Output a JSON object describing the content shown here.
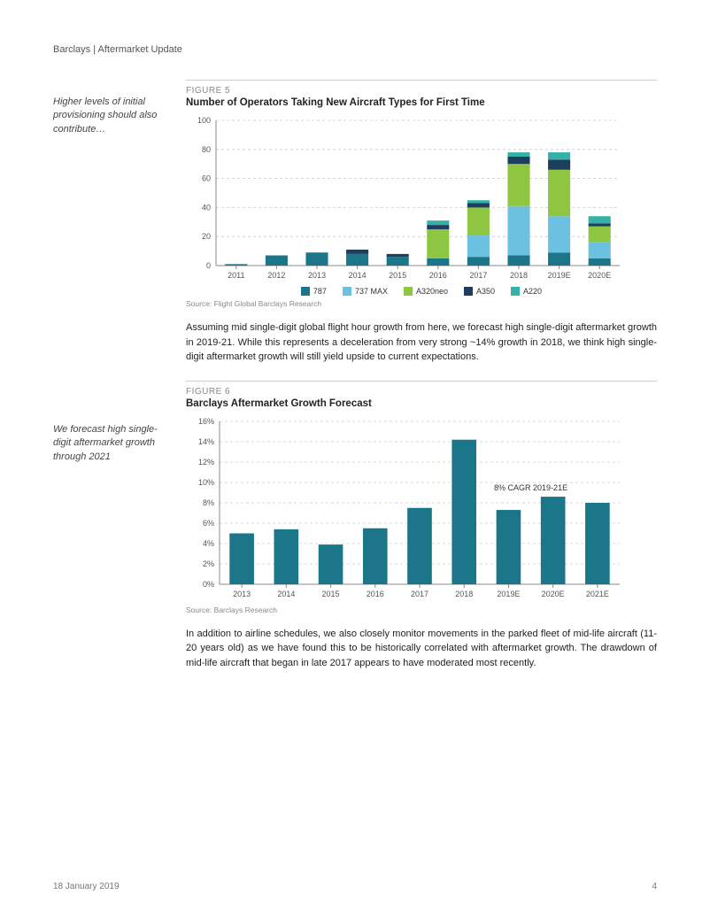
{
  "header": "Barclays | Aftermarket Update",
  "margin_note_1": "Higher levels of initial provisioning should also contribute…",
  "margin_note_2": "We forecast high single-digit aftermarket growth through 2021",
  "figure5": {
    "label": "FIGURE 5",
    "title": "Number of Operators Taking New Aircraft Types for First Time",
    "type": "stacked-bar",
    "categories": [
      "2011",
      "2012",
      "2013",
      "2014",
      "2015",
      "2016",
      "2017",
      "2018",
      "2019E",
      "2020E"
    ],
    "series": [
      {
        "name": "787",
        "color": "#1b768a",
        "values": [
          1,
          7,
          9,
          8,
          6,
          5,
          6,
          7,
          9,
          5
        ]
      },
      {
        "name": "737 MAX",
        "color": "#6cc0e0",
        "values": [
          0,
          0,
          0,
          0,
          0,
          0,
          15,
          34,
          25,
          11
        ]
      },
      {
        "name": "A320neo",
        "color": "#8ec641",
        "values": [
          0,
          0,
          0,
          0,
          0,
          20,
          19,
          29,
          32,
          11
        ]
      },
      {
        "name": "A350",
        "color": "#1c3f5f",
        "values": [
          0,
          0,
          0,
          3,
          2,
          3,
          3,
          5,
          7,
          2
        ]
      },
      {
        "name": "A220",
        "color": "#35b1a8",
        "values": [
          0,
          0,
          0,
          0,
          0,
          3,
          2,
          3,
          5,
          5
        ]
      }
    ],
    "ylim": [
      0,
      100
    ],
    "ytick_step": 20,
    "grid_color": "#cccccc",
    "bg_color": "#ffffff",
    "label_fontsize": 9,
    "source": "Source: Flight Global Barclays Research"
  },
  "para1": "Assuming mid single-digit global flight hour growth from here, we forecast high single-digit aftermarket growth in 2019-21. While this represents a deceleration from very strong ~14% growth in 2018, we think high single-digit aftermarket growth will still yield upside to current expectations.",
  "figure6": {
    "label": "FIGURE 6",
    "title": "Barclays Aftermarket Growth Forecast",
    "type": "bar",
    "categories": [
      "2013",
      "2014",
      "2015",
      "2016",
      "2017",
      "2018",
      "2019E",
      "2020E",
      "2021E"
    ],
    "values": [
      5.0,
      5.4,
      3.9,
      5.5,
      7.5,
      14.2,
      7.3,
      8.6,
      8.0
    ],
    "bar_color": "#1b768a",
    "ylim": [
      0,
      16
    ],
    "ytick_step": 2,
    "y_format": "percent",
    "grid_color": "#cccccc",
    "bg_color": "#ffffff",
    "label_fontsize": 9,
    "annotation": "8% CAGR 2019-21E",
    "source": "Source: Barclays Research"
  },
  "para2": "In addition to airline schedules, we also closely monitor movements in the parked fleet of mid-life aircraft (11-20 years old) as we have found this to be historically correlated with aftermarket growth. The drawdown of mid-life aircraft that began in late 2017 appears to have moderated most recently.",
  "footer_date": "18 January 2019",
  "footer_page": "4"
}
